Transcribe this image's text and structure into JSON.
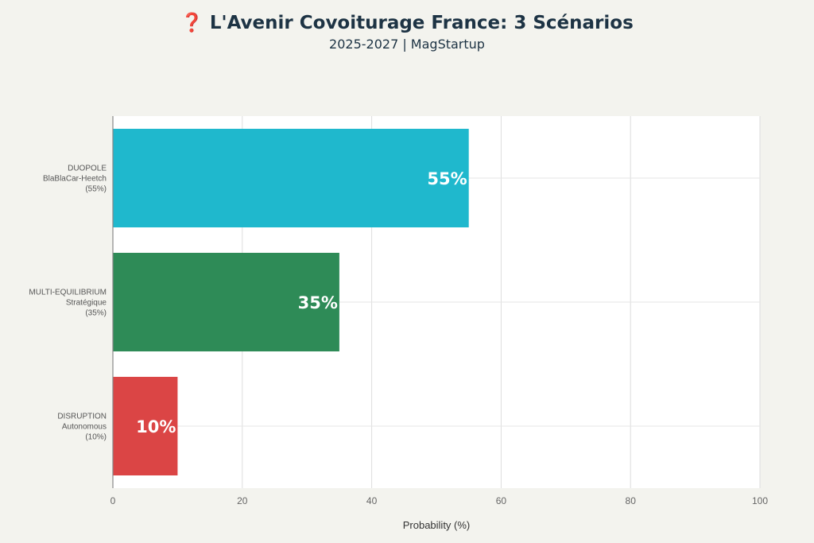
{
  "chart_data": {
    "type": "bar",
    "orientation": "horizontal",
    "title": "❓ L'Avenir Covoiturage France: 3 Scénarios",
    "subtitle": "2025-2027 | MagStartup",
    "xlabel": "Probability (%)",
    "ylabel": "",
    "xlim": [
      0,
      100
    ],
    "x_ticks": [
      0,
      20,
      40,
      60,
      80,
      100
    ],
    "grid": true,
    "categories": [
      [
        "DUOPOLE",
        "BlaBlaCar-Heetch",
        "(55%)"
      ],
      [
        "MULTI-EQUILIBRIUM",
        "Stratégique",
        "(35%)"
      ],
      [
        "DISRUPTION",
        "Autonomous",
        "(10%)"
      ]
    ],
    "values": [
      55,
      35,
      10
    ],
    "data_labels": [
      "55%",
      "35%",
      "10%"
    ],
    "colors": [
      "#1fb8cd",
      "#2e8b57",
      "#db4545"
    ]
  }
}
